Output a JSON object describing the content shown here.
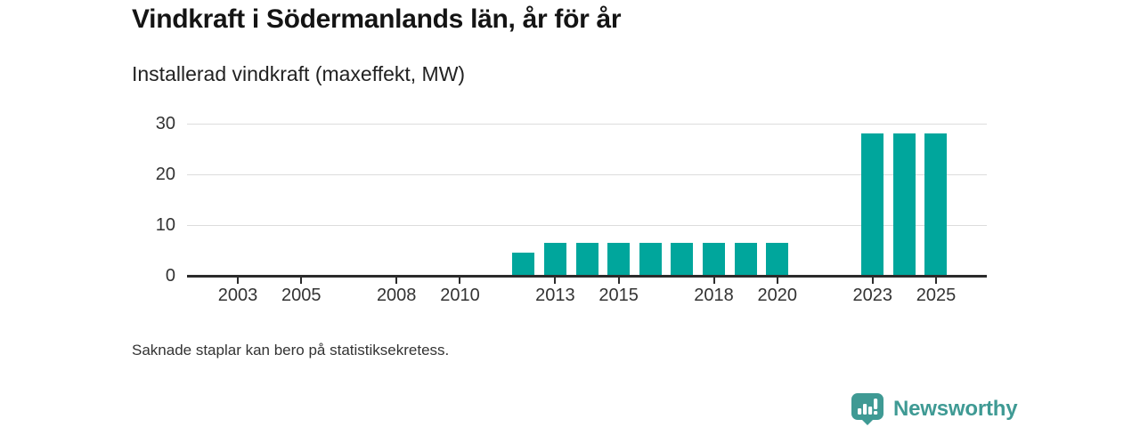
{
  "chart_data": {
    "type": "bar",
    "title": "Vindkraft i Södermanlands län, år för år",
    "subtitle": "Installerad vindkraft (maxeffekt, MW)",
    "note": "Saknade staplar kan bero på statistiksekretess.",
    "unit": "MW",
    "points": [
      {
        "year": 2012,
        "value": 4.5
      },
      {
        "year": 2013,
        "value": 6.5
      },
      {
        "year": 2014,
        "value": 6.5
      },
      {
        "year": 2015,
        "value": 6.5
      },
      {
        "year": 2016,
        "value": 6.5
      },
      {
        "year": 2017,
        "value": 6.5
      },
      {
        "year": 2018,
        "value": 6.5
      },
      {
        "year": 2019,
        "value": 6.5
      },
      {
        "year": 2020,
        "value": 6.5
      },
      {
        "year": 2023,
        "value": 28
      },
      {
        "year": 2024,
        "value": 28
      },
      {
        "year": 2025,
        "value": 28
      }
    ],
    "missing_years": [
      2001,
      2002,
      2003,
      2004,
      2005,
      2006,
      2007,
      2008,
      2009,
      2010,
      2011,
      2021,
      2022
    ],
    "xlim": [
      2001.4,
      2026.6
    ],
    "ylim": [
      0,
      30
    ],
    "xticks": [
      2003,
      2005,
      2008,
      2010,
      2013,
      2015,
      2018,
      2020,
      2023,
      2025
    ],
    "yticks": [
      0,
      10,
      20,
      30
    ],
    "grid": true,
    "legend": false,
    "colors": {
      "bar": "#00a69c",
      "axis": "#2b2b2b",
      "gridline": "#dcdcdc",
      "tick_label": "#333333"
    }
  },
  "branding": {
    "wordmark": "Newsworthy",
    "logo_icon": "chart-speech-bubble-icon",
    "color": "#3f9a94"
  }
}
